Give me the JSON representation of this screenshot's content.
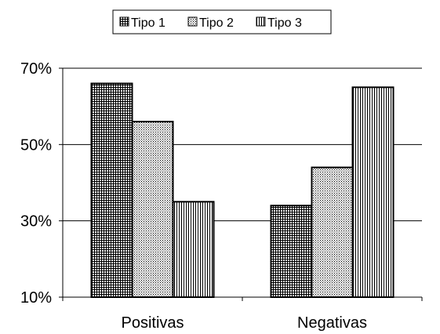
{
  "chart_data": {
    "type": "bar",
    "categories": [
      "Positivas",
      "Negativas"
    ],
    "series": [
      {
        "name": "Tipo 1",
        "values": [
          66,
          34
        ],
        "pattern": "grid"
      },
      {
        "name": "Tipo 2",
        "values": [
          56,
          44
        ],
        "pattern": "dots"
      },
      {
        "name": "Tipo 3",
        "values": [
          35,
          65
        ],
        "pattern": "vlines"
      }
    ],
    "y_ticks": [
      "10%",
      "30%",
      "50%",
      "70%"
    ],
    "y_tick_values": [
      10,
      30,
      50,
      70
    ],
    "ylim": [
      10,
      70
    ],
    "grid": true,
    "legend_position": "top-center",
    "colors": {
      "bar_fill": "#ffffff",
      "bar_stroke": "#000000",
      "pattern": "#000000",
      "grid": "#000000"
    }
  }
}
